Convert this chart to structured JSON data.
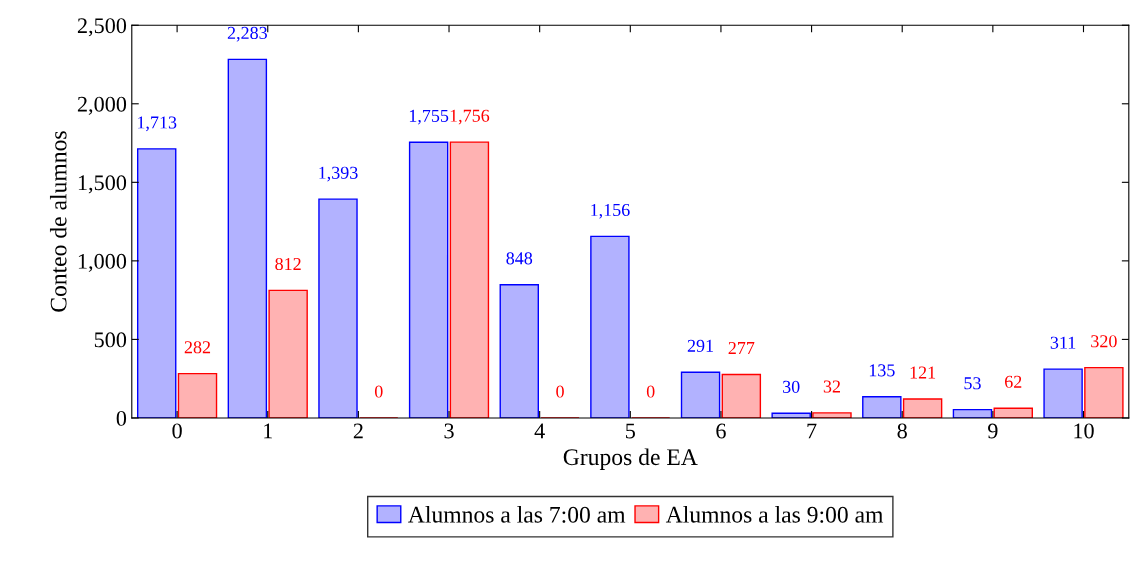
{
  "chart_data": {
    "type": "bar",
    "xlabel": "Grupos de EA",
    "ylabel": "Conteo de alumnos",
    "categories": [
      "0",
      "1",
      "2",
      "3",
      "4",
      "5",
      "6",
      "7",
      "8",
      "9",
      "10"
    ],
    "series": [
      {
        "name": "Alumnos a las 7:00 am",
        "color": "#0000ff",
        "values": [
          1713,
          2283,
          1393,
          1755,
          848,
          1156,
          291,
          30,
          135,
          53,
          311
        ],
        "value_labels": [
          "1,713",
          "2,283",
          "1,393",
          "1,755",
          "848",
          "1,156",
          "291",
          "30",
          "135",
          "53",
          "311"
        ]
      },
      {
        "name": "Alumnos a las 9:00 am",
        "color": "#ff0000",
        "values": [
          282,
          812,
          0,
          1756,
          0,
          0,
          277,
          32,
          121,
          62,
          320
        ],
        "value_labels": [
          "282",
          "812",
          "0",
          "1,756",
          "0",
          "0",
          "277",
          "32",
          "121",
          "62",
          "320"
        ]
      }
    ],
    "ylim": [
      0,
      2500
    ],
    "yticks": [
      0,
      500,
      {
        "value": 1000,
        "label": "1,000"
      },
      {
        "value": 1500,
        "label": "1,500"
      },
      {
        "value": 2000,
        "label": "2,000"
      },
      {
        "value": 2500,
        "label": "2,500"
      }
    ],
    "grid": false,
    "legend": "bottom"
  }
}
